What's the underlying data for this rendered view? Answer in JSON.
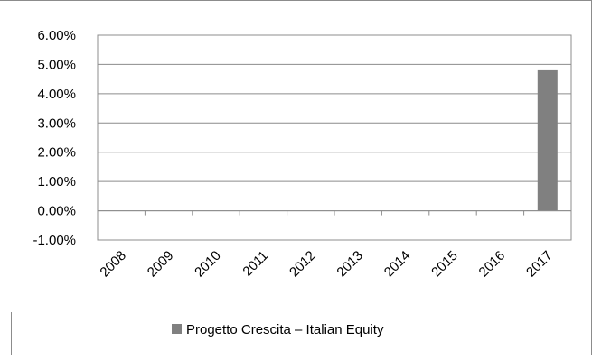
{
  "chart_data": {
    "type": "bar",
    "categories": [
      "2008",
      "2009",
      "2010",
      "2011",
      "2012",
      "2013",
      "2014",
      "2015",
      "2016",
      "2017"
    ],
    "series": [
      {
        "name": "Progetto Crescita – Italian Equity",
        "values": [
          0,
          0,
          0,
          0,
          0,
          0,
          0,
          0,
          0,
          4.8
        ],
        "color": "#808080"
      }
    ],
    "ylim": [
      -1,
      6
    ],
    "yticks": [
      -1,
      0,
      1,
      2,
      3,
      4,
      5,
      6
    ],
    "ytick_labels": [
      "-1.00%",
      "0.00%",
      "1.00%",
      "2.00%",
      "3.00%",
      "4.00%",
      "5.00%",
      "6.00%"
    ],
    "grid": true,
    "legend_position": "bottom",
    "title": "",
    "xlabel": "",
    "ylabel": ""
  }
}
